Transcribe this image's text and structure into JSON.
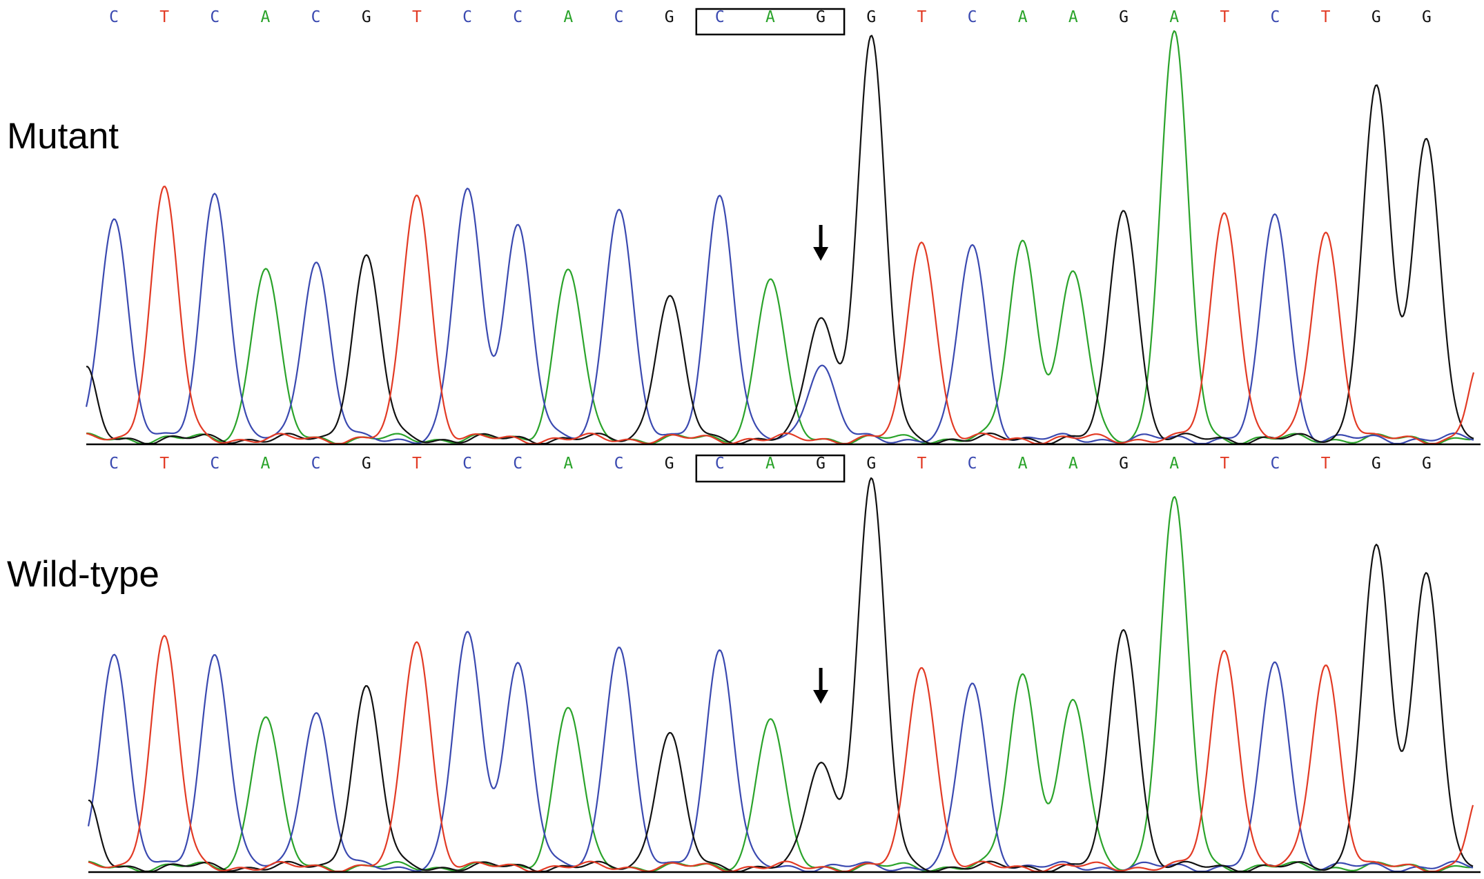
{
  "colors": {
    "A": "#2aa32a",
    "C": "#3a49b0",
    "G": "#111111",
    "T": "#e23a24"
  },
  "icons": {
    "arrow": "down-arrow-icon"
  },
  "panels": [
    {
      "id": "mutant",
      "label": "Mutant",
      "sequence": [
        "C",
        "T",
        "C",
        "A",
        "C",
        "G",
        "T",
        "C",
        "C",
        "A",
        "C",
        "G",
        "C",
        "A",
        "G",
        "G",
        "T",
        "C",
        "A",
        "A",
        "G",
        "A",
        "T",
        "C",
        "T",
        "G",
        "G"
      ],
      "boxed_range": [
        12,
        14
      ],
      "arrow_index": 14,
      "peaks": [
        {
          "base": "C",
          "h": 0.56
        },
        {
          "base": "T",
          "h": 0.625
        },
        {
          "base": "C",
          "h": 0.62
        },
        {
          "base": "A",
          "h": 0.43
        },
        {
          "base": "C",
          "h": 0.445
        },
        {
          "base": "G",
          "h": 0.455
        },
        {
          "base": "T",
          "h": 0.617
        },
        {
          "base": "C",
          "h": 0.62
        },
        {
          "base": "C",
          "h": 0.535
        },
        {
          "base": "A",
          "h": 0.425
        },
        {
          "base": "C",
          "h": 0.584
        },
        {
          "base": "G",
          "h": 0.355
        },
        {
          "base": "C",
          "h": 0.611
        },
        {
          "base": "A",
          "h": 0.402
        },
        {
          "base": "G",
          "h": 0.305
        },
        {
          "base": "G",
          "h": 1.0
        },
        {
          "base": "T",
          "h": 0.502
        },
        {
          "base": "C",
          "h": 0.484
        },
        {
          "base": "A",
          "h": 0.494
        },
        {
          "base": "A",
          "h": 0.415
        },
        {
          "base": "G",
          "h": 0.579
        },
        {
          "base": "A",
          "h": 1.01
        },
        {
          "base": "T",
          "h": 0.57
        },
        {
          "base": "C",
          "h": 0.564
        },
        {
          "base": "T",
          "h": 0.52
        },
        {
          "base": "G",
          "h": 0.874
        },
        {
          "base": "G",
          "h": 0.752
        }
      ],
      "secondary_peaks": [
        {
          "index": 14,
          "base": "C",
          "h": 0.187
        }
      ]
    },
    {
      "id": "wild-type",
      "label": "Wild-type",
      "sequence": [
        "C",
        "T",
        "C",
        "A",
        "C",
        "G",
        "T",
        "C",
        "C",
        "A",
        "C",
        "G",
        "C",
        "A",
        "G",
        "G",
        "T",
        "C",
        "A",
        "A",
        "G",
        "A",
        "T",
        "C",
        "T",
        "G",
        "G"
      ],
      "boxed_range": [
        12,
        14
      ],
      "arrow_index": 14,
      "peaks": [
        {
          "base": "C",
          "h": 0.561
        },
        {
          "base": "T",
          "h": 0.593
        },
        {
          "base": "C",
          "h": 0.557
        },
        {
          "base": "A",
          "h": 0.393
        },
        {
          "base": "C",
          "h": 0.403
        },
        {
          "base": "G",
          "h": 0.465
        },
        {
          "base": "T",
          "h": 0.591
        },
        {
          "base": "C",
          "h": 0.604
        },
        {
          "base": "C",
          "h": 0.529
        },
        {
          "base": "A",
          "h": 0.414
        },
        {
          "base": "C",
          "h": 0.58
        },
        {
          "base": "G",
          "h": 0.345
        },
        {
          "base": "C",
          "h": 0.565
        },
        {
          "base": "A",
          "h": 0.386
        },
        {
          "base": "G",
          "h": 0.273
        },
        {
          "base": "G",
          "h": 1.0
        },
        {
          "base": "T",
          "h": 0.527
        },
        {
          "base": "C",
          "h": 0.475
        },
        {
          "base": "A",
          "h": 0.498
        },
        {
          "base": "A",
          "h": 0.429
        },
        {
          "base": "G",
          "h": 0.623
        },
        {
          "base": "A",
          "h": 0.95
        },
        {
          "base": "T",
          "h": 0.566
        },
        {
          "base": "C",
          "h": 0.533
        },
        {
          "base": "T",
          "h": 0.527
        },
        {
          "base": "G",
          "h": 0.825
        },
        {
          "base": "G",
          "h": 0.764
        }
      ],
      "secondary_peaks": []
    }
  ]
}
